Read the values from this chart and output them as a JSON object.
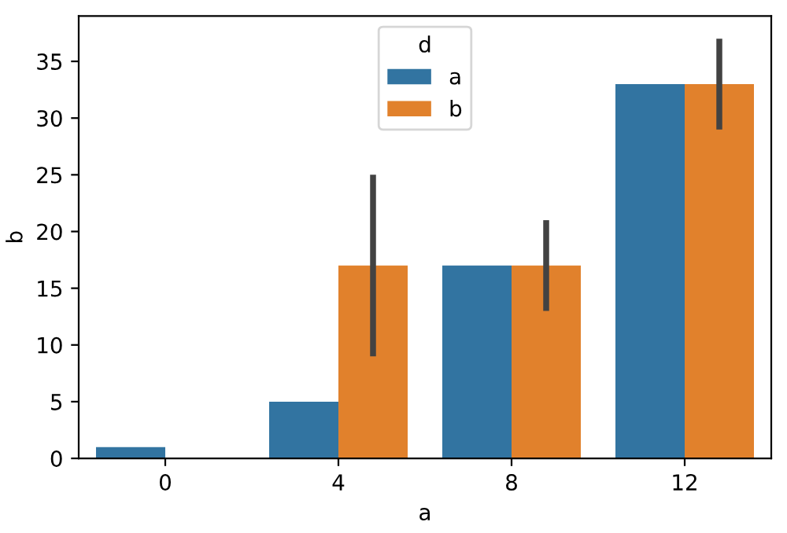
{
  "chart_data": {
    "type": "bar",
    "xlabel": "a",
    "ylabel": "b",
    "legend_title": "d",
    "categories": [
      "0",
      "4",
      "8",
      "12"
    ],
    "series": [
      {
        "name": "a",
        "color": "#3274a1",
        "values": [
          1,
          5,
          17,
          33
        ]
      },
      {
        "name": "b",
        "color": "#e1812c",
        "values": [
          null,
          17,
          17,
          33
        ],
        "errors": [
          null,
          [
            9,
            25
          ],
          [
            13,
            21
          ],
          [
            29,
            37
          ]
        ]
      }
    ],
    "ylim": [
      0,
      39
    ],
    "yticks": [
      0,
      5,
      10,
      15,
      20,
      25,
      30,
      35
    ],
    "grid": false,
    "legend": "top"
  }
}
